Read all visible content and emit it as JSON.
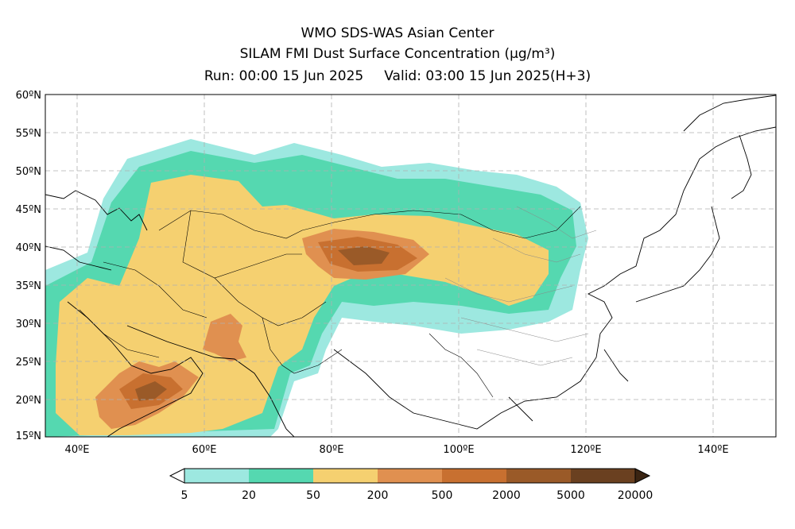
{
  "title": {
    "line1": "WMO SDS-WAS Asian Center",
    "line2_prefix": "SILAM FMI Dust Surface Concentration",
    "line2_unit": "(μg/m³)",
    "run": "Run: 00:00 15 Jun 2025",
    "valid": "Valid: 03:00 15 Jun 2025(H+3)"
  },
  "axes": {
    "lat_labels": [
      "60ºN",
      "55ºN",
      "50ºN",
      "45ºN",
      "40ºN",
      "35ºN",
      "30ºN",
      "25ºN",
      "20ºN",
      "15ºN"
    ],
    "lon_labels": [
      "40ºE",
      "60ºE",
      "80ºE",
      "100ºE",
      "120ºE",
      "140ºE"
    ],
    "lat_range": [
      15,
      60
    ],
    "lon_range": [
      35,
      150
    ],
    "grid": true
  },
  "colorbar": {
    "colors": [
      "#ffffff",
      "#9de8e0",
      "#55d8b0",
      "#f5d070",
      "#e09050",
      "#c87030",
      "#9a5a28",
      "#6a4020",
      "#3a2412"
    ],
    "labels": [
      "5",
      "20",
      "50",
      "200",
      "500",
      "2000",
      "5000",
      "20000"
    ]
  }
}
